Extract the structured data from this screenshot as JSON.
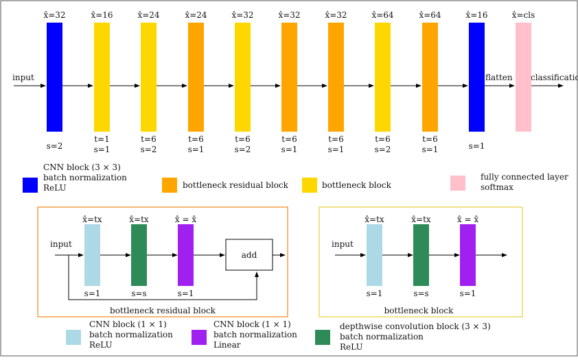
{
  "main_pipeline": {
    "input_label": "input",
    "flatten_label": "flatten",
    "output_label": "classification",
    "blocks": [
      {
        "top": "x̂=32",
        "bottom": [
          "s=2"
        ],
        "kind": "cnn",
        "color": "#0000ff"
      },
      {
        "top": "x̂=16",
        "bottom": [
          "t=1",
          "s=1"
        ],
        "kind": "bottleneck",
        "color": "#ffd700"
      },
      {
        "top": "x̂=24",
        "bottom": [
          "t=6",
          "s=2"
        ],
        "kind": "bottleneck",
        "color": "#ffd700"
      },
      {
        "top": "x̂=24",
        "bottom": [
          "t=6",
          "s=1"
        ],
        "kind": "bottleneck-residual",
        "color": "#ffa500"
      },
      {
        "top": "x̂=32",
        "bottom": [
          "t=6",
          "s=2"
        ],
        "kind": "bottleneck",
        "color": "#ffd700"
      },
      {
        "top": "x̂=32",
        "bottom": [
          "t=6",
          "s=1"
        ],
        "kind": "bottleneck-residual",
        "color": "#ffa500"
      },
      {
        "top": "x̂=32",
        "bottom": [
          "t=6",
          "s=1"
        ],
        "kind": "bottleneck-residual",
        "color": "#ffa500"
      },
      {
        "top": "x̂=64",
        "bottom": [
          "t=6",
          "s=2"
        ],
        "kind": "bottleneck",
        "color": "#ffd700"
      },
      {
        "top": "x̂=64",
        "bottom": [
          "t=6",
          "s=1"
        ],
        "kind": "bottleneck-residual",
        "color": "#ffa500"
      },
      {
        "top": "x̂=16",
        "bottom": [
          "s=1"
        ],
        "kind": "cnn",
        "color": "#0000ff"
      },
      {
        "top": "x̂=cls",
        "bottom": [],
        "kind": "fully-connected",
        "color": "#ffc0cb"
      }
    ]
  },
  "legend_top": [
    {
      "name": "cnn-block",
      "color": "#0000ff",
      "lines": [
        "CNN block (3 × 3)",
        "batch normalization",
        "ReLU"
      ]
    },
    {
      "name": "bottleneck-residual-block",
      "color": "#ffa500",
      "lines": [
        "bottleneck residual block"
      ]
    },
    {
      "name": "bottleneck-block",
      "color": "#ffd700",
      "lines": [
        "bottleneck block"
      ]
    },
    {
      "name": "fully-connected-layer",
      "color": "#ffc0cb",
      "lines": [
        "fully connected layer",
        "softmax"
      ]
    }
  ],
  "residual_detail": {
    "caption": "bottleneck residual block",
    "input_label": "input",
    "add_label": "add",
    "border_color": "#f0902a",
    "blocks": [
      {
        "top": "x̂=tx",
        "bottom": "s=1",
        "color": "#add8e6"
      },
      {
        "top": "x̂=tx",
        "bottom": "s=s",
        "color": "#2e8b57"
      },
      {
        "top": "x̂ = x̂",
        "bottom": "s=1",
        "color": "#a020f0"
      }
    ]
  },
  "plain_detail": {
    "caption": "bottleneck block",
    "input_label": "input",
    "border_color": "#e8d44a",
    "blocks": [
      {
        "top": "x̂=tx",
        "bottom": "s=1",
        "color": "#add8e6"
      },
      {
        "top": "x̂=tx",
        "bottom": "s=s",
        "color": "#2e8b57"
      },
      {
        "top": "x̂ = x̂",
        "bottom": "s=1",
        "color": "#a020f0"
      }
    ]
  },
  "legend_bottom": [
    {
      "name": "cnn-1x1-relu-block",
      "color": "#add8e6",
      "lines": [
        "CNN block (1 × 1)",
        "batch normalization",
        "ReLU"
      ]
    },
    {
      "name": "cnn-1x1-linear-block",
      "color": "#a020f0",
      "lines": [
        "CNN block (1 × 1)",
        "batch normalization",
        "Linear"
      ]
    },
    {
      "name": "depthwise-conv-block",
      "color": "#2e8b57",
      "lines": [
        "depthwise convolution block (3 × 3)",
        "batch normalization",
        "ReLU"
      ]
    }
  ]
}
